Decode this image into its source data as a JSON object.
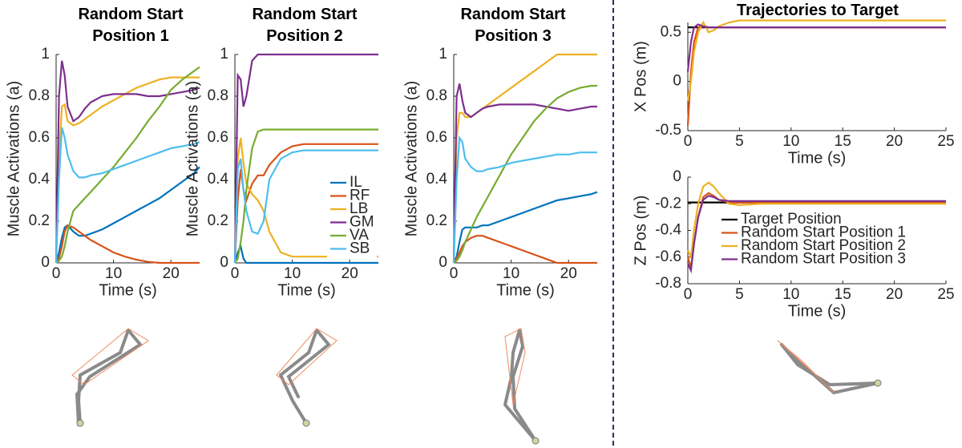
{
  "chart_data": [
    {
      "type": "line",
      "title": "Random Start Position 1",
      "xlabel": "Time (s)",
      "ylabel": "Muscle Activations (a)",
      "x": [
        0,
        0.5,
        1,
        1.5,
        2,
        3,
        4,
        5,
        6,
        8,
        10,
        12,
        14,
        16,
        18,
        20,
        22,
        24,
        25
      ],
      "xlim": [
        0,
        25
      ],
      "xticks": [
        0,
        10,
        20
      ],
      "ylim": [
        0,
        1
      ],
      "yticks": [
        0,
        0.2,
        0.4,
        0.6,
        0.8,
        1
      ],
      "series": [
        {
          "color": "#0072BD",
          "values": [
            0,
            0.05,
            0.12,
            0.17,
            0.18,
            0.15,
            0.13,
            0.13,
            0.14,
            0.16,
            0.19,
            0.22,
            0.25,
            0.28,
            0.31,
            0.35,
            0.39,
            0.43,
            0.46
          ]
        },
        {
          "color": "#D95319",
          "values": [
            0,
            0.02,
            0.08,
            0.15,
            0.18,
            0.17,
            0.15,
            0.13,
            0.11,
            0.08,
            0.05,
            0.03,
            0.015,
            0.005,
            0,
            0,
            0,
            0,
            0
          ]
        },
        {
          "color": "#EDB120",
          "values": [
            0,
            0.5,
            0.75,
            0.76,
            0.68,
            0.66,
            0.67,
            0.69,
            0.71,
            0.75,
            0.78,
            0.81,
            0.84,
            0.86,
            0.88,
            0.89,
            0.89,
            0.89,
            0.89
          ]
        },
        {
          "color": "#7E2F8E",
          "values": [
            0,
            0.8,
            0.97,
            0.9,
            0.75,
            0.68,
            0.7,
            0.74,
            0.77,
            0.8,
            0.81,
            0.81,
            0.81,
            0.8,
            0.8,
            0.81,
            0.82,
            0.83,
            0.84
          ]
        },
        {
          "color": "#77AC30",
          "values": [
            0,
            0.01,
            0.03,
            0.08,
            0.15,
            0.25,
            0.28,
            0.31,
            0.34,
            0.4,
            0.46,
            0.53,
            0.6,
            0.68,
            0.75,
            0.83,
            0.88,
            0.92,
            0.94
          ]
        },
        {
          "color": "#4DBEEE",
          "values": [
            0,
            0.4,
            0.65,
            0.6,
            0.52,
            0.44,
            0.41,
            0.41,
            0.42,
            0.43,
            0.45,
            0.47,
            0.49,
            0.51,
            0.53,
            0.55,
            0.56,
            0.57,
            0.58
          ]
        }
      ]
    },
    {
      "type": "line",
      "title": "Random Start Position 2",
      "xlabel": "Time (s)",
      "ylabel": "Muscle Activations (a)",
      "x": [
        0,
        0.5,
        1,
        1.5,
        2,
        3,
        4,
        5,
        6,
        8,
        10,
        12,
        14,
        16,
        18,
        20,
        22,
        24,
        25
      ],
      "xlim": [
        0,
        25
      ],
      "xticks": [
        0,
        10,
        20
      ],
      "ylim": [
        0,
        1
      ],
      "yticks": [
        0,
        0.2,
        0.4,
        0.6,
        0.8,
        1
      ],
      "legend": "lower right",
      "series": [
        {
          "name": "IL",
          "color": "#0072BD",
          "values": [
            0,
            0.05,
            0.08,
            0.02,
            0,
            0,
            0,
            0,
            0,
            0,
            0,
            0,
            0,
            0,
            0,
            0,
            0,
            0,
            0
          ]
        },
        {
          "name": "RF",
          "color": "#D95319",
          "values": [
            0,
            0.3,
            0.45,
            0.35,
            0.3,
            0.38,
            0.42,
            0.42,
            0.47,
            0.53,
            0.56,
            0.57,
            0.57,
            0.57,
            0.57,
            0.57,
            0.57,
            0.57,
            0.57
          ]
        },
        {
          "name": "LB",
          "color": "#EDB120",
          "values": [
            0,
            0.5,
            0.6,
            0.48,
            0.38,
            0.33,
            0.3,
            0.25,
            0.15,
            0.05,
            0.03,
            0.03,
            0.03,
            0.03,
            0.03,
            0.03,
            0.03,
            0.03,
            0.03
          ]
        },
        {
          "name": "GM",
          "color": "#7E2F8E",
          "values": [
            0,
            0.9,
            0.88,
            0.75,
            0.8,
            0.97,
            1,
            1,
            1,
            1,
            1,
            1,
            1,
            1,
            1,
            1,
            1,
            1,
            1
          ]
        },
        {
          "name": "VA",
          "color": "#77AC30",
          "values": [
            0,
            0.02,
            0.1,
            0.2,
            0.35,
            0.55,
            0.63,
            0.64,
            0.64,
            0.64,
            0.64,
            0.64,
            0.64,
            0.64,
            0.64,
            0.64,
            0.64,
            0.64,
            0.64
          ]
        },
        {
          "name": "SB",
          "color": "#4DBEEE",
          "values": [
            0,
            0.45,
            0.5,
            0.35,
            0.25,
            0.15,
            0.14,
            0.2,
            0.4,
            0.5,
            0.53,
            0.54,
            0.54,
            0.54,
            0.54,
            0.54,
            0.54,
            0.54,
            0.54
          ]
        }
      ]
    },
    {
      "type": "line",
      "title": "Random Start Position 3",
      "xlabel": "Time (s)",
      "ylabel": "Muscle Activations (a)",
      "x": [
        0,
        0.5,
        1,
        1.5,
        2,
        3,
        4,
        5,
        6,
        8,
        10,
        12,
        14,
        16,
        18,
        20,
        22,
        24,
        25
      ],
      "xlim": [
        0,
        25
      ],
      "xticks": [
        0,
        10,
        20
      ],
      "ylim": [
        0,
        1
      ],
      "yticks": [
        0,
        0.2,
        0.4,
        0.6,
        0.8,
        1
      ],
      "series": [
        {
          "color": "#0072BD",
          "values": [
            0,
            0.03,
            0.1,
            0.16,
            0.17,
            0.17,
            0.17,
            0.18,
            0.18,
            0.2,
            0.22,
            0.24,
            0.26,
            0.28,
            0.3,
            0.31,
            0.32,
            0.33,
            0.34
          ]
        },
        {
          "color": "#D95319",
          "values": [
            0,
            0.02,
            0.05,
            0.08,
            0.1,
            0.12,
            0.13,
            0.13,
            0.12,
            0.1,
            0.08,
            0.06,
            0.04,
            0.02,
            0,
            0,
            0,
            0,
            0
          ]
        },
        {
          "color": "#EDB120",
          "values": [
            0,
            0.6,
            0.72,
            0.72,
            0.7,
            0.7,
            0.72,
            0.74,
            0.76,
            0.8,
            0.84,
            0.88,
            0.92,
            0.96,
            1,
            1,
            1,
            1,
            1
          ]
        },
        {
          "color": "#7E2F8E",
          "values": [
            0,
            0.8,
            0.86,
            0.78,
            0.72,
            0.7,
            0.72,
            0.74,
            0.75,
            0.76,
            0.76,
            0.76,
            0.76,
            0.75,
            0.74,
            0.73,
            0.74,
            0.75,
            0.75
          ]
        },
        {
          "color": "#77AC30",
          "values": [
            0,
            0.01,
            0.03,
            0.06,
            0.1,
            0.16,
            0.22,
            0.27,
            0.32,
            0.42,
            0.52,
            0.6,
            0.68,
            0.74,
            0.79,
            0.82,
            0.84,
            0.85,
            0.85
          ]
        },
        {
          "color": "#4DBEEE",
          "values": [
            0,
            0.4,
            0.6,
            0.58,
            0.5,
            0.46,
            0.44,
            0.44,
            0.45,
            0.46,
            0.48,
            0.49,
            0.5,
            0.51,
            0.52,
            0.52,
            0.53,
            0.53,
            0.53
          ]
        }
      ]
    },
    {
      "type": "line",
      "title": "Trajectories to Target",
      "xlabel": "Time (s)",
      "ylabel": "X Pos (m)",
      "x": [
        0,
        0.3,
        0.6,
        1,
        1.5,
        2,
        2.5,
        3,
        4,
        5,
        7,
        10,
        25
      ],
      "xlim": [
        0,
        25
      ],
      "xticks": [
        0,
        5,
        10,
        15,
        20,
        25
      ],
      "ylim": [
        -0.5,
        0.6
      ],
      "yticks": [
        -0.5,
        0,
        0.5
      ],
      "series": [
        {
          "color": "#000000",
          "values": [
            0.55,
            0.55,
            0.55,
            0.55,
            0.55,
            0.55,
            0.55,
            0.55,
            0.55,
            0.55,
            0.55,
            0.55,
            0.55
          ]
        },
        {
          "color": "#D95319",
          "values": [
            -0.45,
            0.1,
            0.4,
            0.55,
            0.56,
            0.55,
            0.55,
            0.55,
            0.55,
            0.55,
            0.55,
            0.55,
            0.55
          ]
        },
        {
          "color": "#EDB120",
          "values": [
            -0.2,
            0,
            0.3,
            0.5,
            0.6,
            0.5,
            0.52,
            0.56,
            0.6,
            0.62,
            0.62,
            0.62,
            0.62
          ]
        },
        {
          "color": "#7E2F8E",
          "values": [
            0.1,
            0.4,
            0.55,
            0.58,
            0.56,
            0.55,
            0.55,
            0.55,
            0.55,
            0.55,
            0.55,
            0.55,
            0.55
          ]
        }
      ]
    },
    {
      "type": "line",
      "xlabel": "Time (s)",
      "ylabel": "Z Pos (m)",
      "x": [
        0,
        0.3,
        0.6,
        1,
        1.5,
        2,
        2.5,
        3,
        4,
        5,
        7,
        10,
        25
      ],
      "xlim": [
        0,
        25
      ],
      "xticks": [
        0,
        5,
        10,
        15,
        20,
        25
      ],
      "ylim": [
        -0.8,
        0
      ],
      "yticks": [
        -0.8,
        -0.6,
        -0.4,
        -0.2,
        0
      ],
      "legend": "upper right",
      "series": [
        {
          "name": "Target Position",
          "color": "#000000",
          "values": [
            -0.19,
            -0.19,
            -0.19,
            -0.19,
            -0.19,
            -0.19,
            -0.19,
            -0.19,
            -0.19,
            -0.19,
            -0.19,
            -0.19,
            -0.19
          ]
        },
        {
          "name": "Random Start Position 1",
          "color": "#D95319",
          "values": [
            -0.6,
            -0.68,
            -0.5,
            -0.3,
            -0.15,
            -0.12,
            -0.14,
            -0.17,
            -0.19,
            -0.19,
            -0.19,
            -0.19,
            -0.19
          ]
        },
        {
          "name": "Random Start Position 2",
          "color": "#EDB120",
          "values": [
            -0.55,
            -0.6,
            -0.4,
            -0.2,
            -0.07,
            -0.04,
            -0.07,
            -0.12,
            -0.2,
            -0.21,
            -0.2,
            -0.2,
            -0.2
          ]
        },
        {
          "name": "Random Start Position 3",
          "color": "#7E2F8E",
          "values": [
            -0.65,
            -0.7,
            -0.5,
            -0.3,
            -0.17,
            -0.14,
            -0.15,
            -0.17,
            -0.18,
            -0.18,
            -0.18,
            -0.18,
            -0.18
          ]
        }
      ]
    }
  ]
}
